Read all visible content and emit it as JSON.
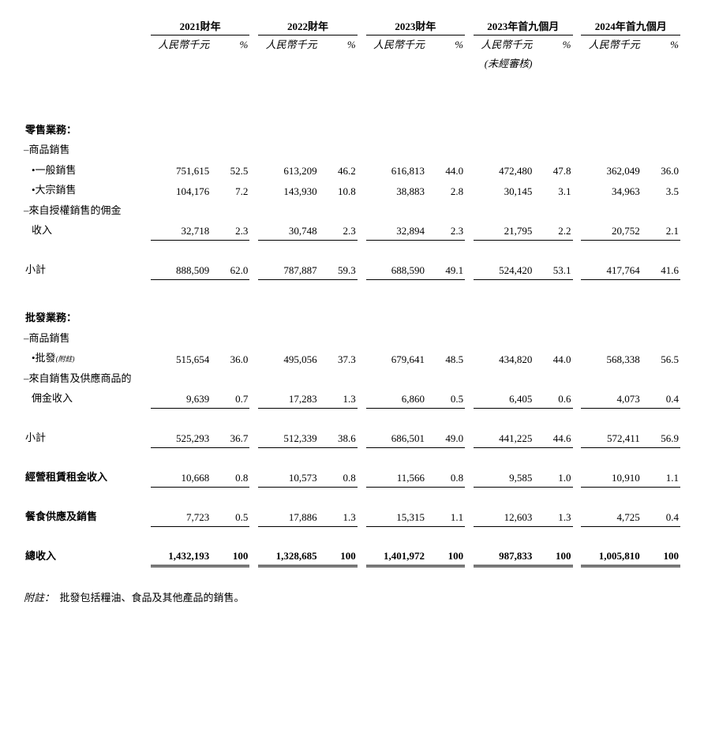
{
  "background_color": "#ffffff",
  "text_color": "#000000",
  "font_family": "Times New Roman / SimSun",
  "base_font_size_pt": 10,
  "periods": [
    {
      "title": "2021財年",
      "unit": "人民幣千元",
      "unit_note": "",
      "pct": "%"
    },
    {
      "title": "2022財年",
      "unit": "人民幣千元",
      "unit_note": "",
      "pct": "%"
    },
    {
      "title": "2023財年",
      "unit": "人民幣千元",
      "unit_note": "",
      "pct": "%"
    },
    {
      "title": "2023年首九個月",
      "unit": "人民幣千元",
      "unit_note": "(未經審核)",
      "pct": "%"
    },
    {
      "title": "2024年首九個月",
      "unit": "人民幣千元",
      "unit_note": "",
      "pct": "%"
    }
  ],
  "sections": {
    "retail_header": "零售業務：",
    "goods_sales": "–商品銷售",
    "general_sales": {
      "label": "•一般銷售",
      "vals": [
        "751,615",
        "52.5",
        "613,209",
        "46.2",
        "616,813",
        "44.0",
        "472,480",
        "47.8",
        "362,049",
        "36.0"
      ]
    },
    "bulk_sales": {
      "label": "•大宗銷售",
      "vals": [
        "104,176",
        "7.2",
        "143,930",
        "10.8",
        "38,883",
        "2.8",
        "30,145",
        "3.1",
        "34,963",
        "3.5"
      ]
    },
    "auth_commission_l1": "–來自授權銷售的佣金",
    "auth_commission_l2": "收入",
    "auth_commission": {
      "vals": [
        "32,718",
        "2.3",
        "30,748",
        "2.3",
        "32,894",
        "2.3",
        "21,795",
        "2.2",
        "20,752",
        "2.1"
      ]
    },
    "retail_subtotal": {
      "label": "小計",
      "vals": [
        "888,509",
        "62.0",
        "787,887",
        "59.3",
        "688,590",
        "49.1",
        "524,420",
        "53.1",
        "417,764",
        "41.6"
      ]
    },
    "wholesale_header": "批發業務：",
    "wholesale_goods": "–商品銷售",
    "wholesale_label": "•批發",
    "wholesale_note": "(附註)",
    "wholesale": {
      "vals": [
        "515,654",
        "36.0",
        "495,056",
        "37.3",
        "679,641",
        "48.5",
        "434,820",
        "44.0",
        "568,338",
        "56.5"
      ]
    },
    "supply_commission_l1": "–來自銷售及供應商品的",
    "supply_commission_l2": "佣金收入",
    "supply_commission": {
      "vals": [
        "9,639",
        "0.7",
        "17,283",
        "1.3",
        "6,860",
        "0.5",
        "6,405",
        "0.6",
        "4,073",
        "0.4"
      ]
    },
    "wholesale_subtotal": {
      "label": "小計",
      "vals": [
        "525,293",
        "36.7",
        "512,339",
        "38.6",
        "686,501",
        "49.0",
        "441,225",
        "44.6",
        "572,411",
        "56.9"
      ]
    },
    "lease_income": {
      "label": "經營租賃租金收入",
      "vals": [
        "10,668",
        "0.8",
        "10,573",
        "0.8",
        "11,566",
        "0.8",
        "9,585",
        "1.0",
        "10,910",
        "1.1"
      ]
    },
    "catering": {
      "label": "餐食供應及銷售",
      "vals": [
        "7,723",
        "0.5",
        "17,886",
        "1.3",
        "15,315",
        "1.1",
        "12,603",
        "1.3",
        "4,725",
        "0.4"
      ]
    },
    "total_revenue": {
      "label": "總收入",
      "vals": [
        "1,432,193",
        "100",
        "1,328,685",
        "100",
        "1,401,972",
        "100",
        "987,833",
        "100",
        "1,005,810",
        "100"
      ]
    }
  },
  "footnote_label": "附註：",
  "footnote_text": "批發包括糧油、食品及其他產品的銷售。"
}
